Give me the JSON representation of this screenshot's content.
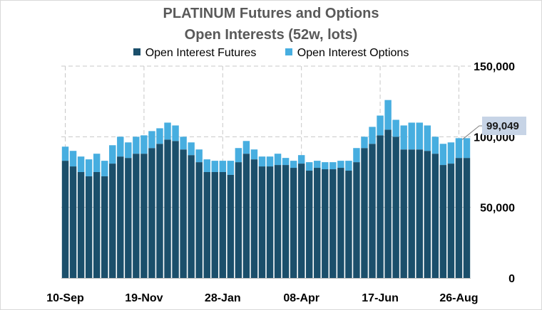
{
  "chart_data": {
    "type": "bar",
    "stacked": true,
    "title_line1": "PLATINUM  Futures and Options",
    "title_line2": "Open Interests (52w, lots)",
    "legend": [
      {
        "label": "Open Interest   Futures",
        "color": "#1b4f6b"
      },
      {
        "label": "Open Interest   Options",
        "color": "#47aee0"
      }
    ],
    "ylim": [
      0,
      150000
    ],
    "yticks": [
      0,
      50000,
      100000,
      150000
    ],
    "ytick_labels": [
      "0",
      "50,000",
      "100,000",
      "150,000"
    ],
    "grid": true,
    "x_tick_labels": [
      {
        "index": 0,
        "label": "10-Sep"
      },
      {
        "index": 10,
        "label": "19-Nov"
      },
      {
        "index": 20,
        "label": "28-Jan"
      },
      {
        "index": 30,
        "label": "08-Apr"
      },
      {
        "index": 40,
        "label": "17-Jun"
      },
      {
        "index": 50,
        "label": "26-Aug"
      }
    ],
    "callout": {
      "label": "99,049",
      "index": 50
    },
    "series": [
      {
        "name": "Open Interest   Futures",
        "values": [
          83000,
          79000,
          75000,
          72000,
          75000,
          72000,
          81000,
          86000,
          85000,
          88000,
          88000,
          92000,
          95000,
          98000,
          97000,
          91000,
          87000,
          82000,
          75000,
          75000,
          75000,
          73000,
          82000,
          88000,
          84000,
          79000,
          79000,
          80000,
          80000,
          78000,
          81000,
          76000,
          78000,
          77000,
          77000,
          78000,
          76000,
          82000,
          92000,
          95000,
          101000,
          105000,
          100000,
          91000,
          91000,
          91000,
          90000,
          88000,
          80000,
          81000,
          85000,
          85000
        ]
      },
      {
        "name": "Open Interest   Options",
        "values": [
          10000,
          11000,
          11000,
          12000,
          13000,
          11000,
          13000,
          14000,
          11000,
          12000,
          13000,
          12000,
          11000,
          12000,
          11000,
          9000,
          9000,
          9000,
          9000,
          8000,
          8000,
          10000,
          10000,
          9000,
          7000,
          7000,
          7000,
          8000,
          5000,
          5000,
          6000,
          6000,
          5000,
          5000,
          5000,
          5000,
          7000,
          10000,
          8000,
          12000,
          14000,
          21000,
          12000,
          17000,
          19000,
          19000,
          18000,
          12000,
          15000,
          15000,
          14000,
          14000
        ]
      }
    ]
  }
}
